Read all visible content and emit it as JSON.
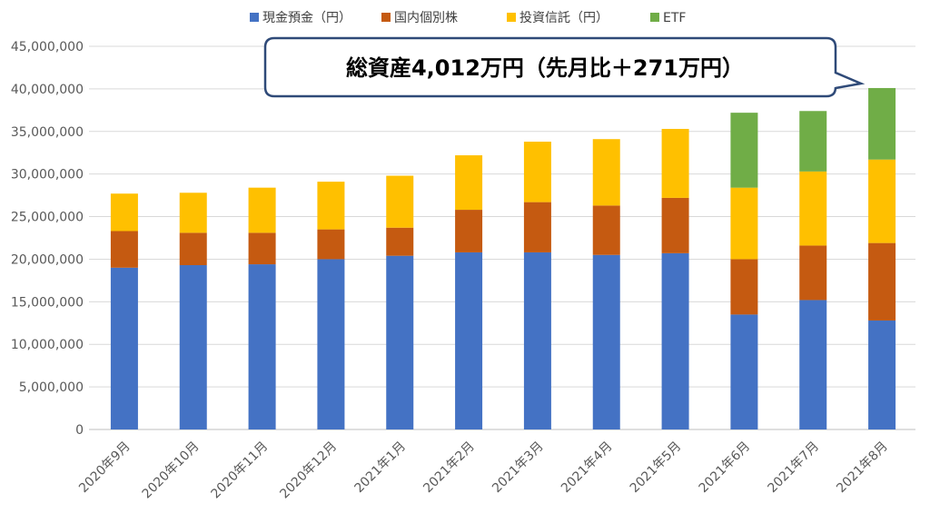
{
  "chart_data": {
    "type": "bar",
    "stacked": true,
    "categories": [
      "2020年9月",
      "2020年10月",
      "2020年11月",
      "2020年12月",
      "2021年1月",
      "2021年2月",
      "2021年3月",
      "2021年4月",
      "2021年5月",
      "2021年6月",
      "2021年7月",
      "2021年8月"
    ],
    "series": [
      {
        "name": "現金預金（円）",
        "color": "#4472c4",
        "values": [
          19000000,
          19300000,
          19400000,
          20000000,
          20400000,
          20800000,
          20800000,
          20500000,
          20700000,
          13500000,
          15200000,
          12800000
        ]
      },
      {
        "name": "国内個別株",
        "color": "#c55a11",
        "values": [
          4300000,
          3800000,
          3700000,
          3500000,
          3300000,
          5000000,
          5900000,
          5800000,
          6500000,
          6500000,
          6400000,
          9100000
        ]
      },
      {
        "name": "投資信託（円）",
        "color": "#ffc000",
        "values": [
          4400000,
          4700000,
          5300000,
          5600000,
          6100000,
          6400000,
          7100000,
          7800000,
          8100000,
          8400000,
          8700000,
          9800000
        ]
      },
      {
        "name": "ETF",
        "color": "#70ad47",
        "values": [
          0,
          0,
          0,
          0,
          0,
          0,
          0,
          0,
          0,
          8800000,
          7100000,
          8400000
        ]
      }
    ],
    "yticks": [
      "0",
      "5,000,000",
      "10,000,000",
      "15,000,000",
      "20,000,000",
      "25,000,000",
      "30,000,000",
      "35,000,000",
      "40,000,000",
      "45,000,000"
    ],
    "ylim": [
      0,
      45000000
    ],
    "grid": true,
    "legend_position": "top",
    "annotation": "総資産4,012万円（先月比＋271万円）"
  }
}
